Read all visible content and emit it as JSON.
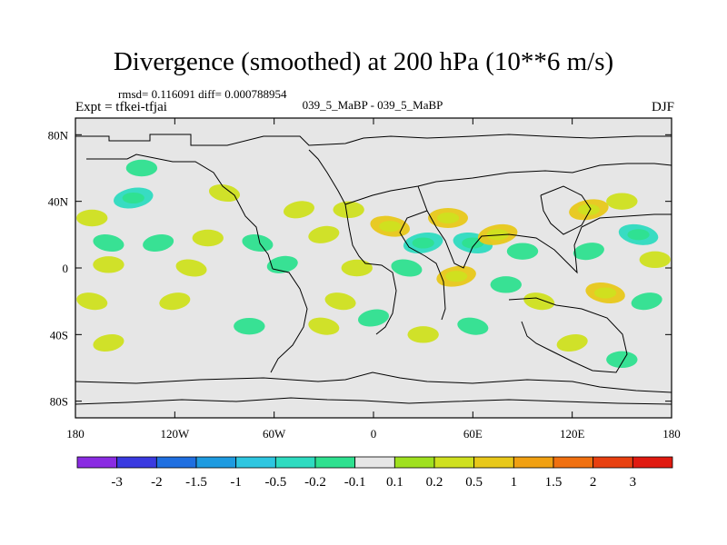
{
  "header": {
    "title": "Divergence (smoothed) at 200 hPa (10**6 m/s)",
    "stats": "rmsd= 0.116091 diff= 0.000788954",
    "experiment": "Expt = tfkei-tfjai",
    "runs": "039_5_MaBP - 039_5_MaBP",
    "season": "DJF"
  },
  "chart_data": {
    "type": "heatmap",
    "title": "Divergence (smoothed) at 200 hPa (10**6 m/s)",
    "xlabel": "",
    "ylabel": "",
    "xlim": [
      -180,
      180
    ],
    "ylim": [
      -90,
      90
    ],
    "x_ticks": [
      -180,
      -120,
      -60,
      0,
      60,
      120,
      180
    ],
    "x_tick_labels": [
      "180",
      "120W",
      "60W",
      "0",
      "60E",
      "120E",
      "180"
    ],
    "y_ticks": [
      80,
      40,
      0,
      -40,
      -80
    ],
    "y_tick_labels": [
      "80N",
      "40N",
      "0",
      "40S",
      "80S"
    ],
    "colorbar": {
      "levels": [
        "-3",
        "-2",
        "-1.5",
        "-1",
        "-0.5",
        "-0.2",
        "-0.1",
        "0.1",
        "0.2",
        "0.5",
        "1",
        "1.5",
        "2",
        "3"
      ],
      "colors": [
        "#8a2be2",
        "#3a3ae0",
        "#1f6fe0",
        "#1e9be0",
        "#2ec6e0",
        "#2edbc0",
        "#2ee08f",
        "#e6e6e6",
        "#9fe01f",
        "#cfe01f",
        "#e8c81a",
        "#f0a012",
        "#f07010",
        "#e84010",
        "#e01a10"
      ]
    },
    "anomalies": [
      {
        "lon": -145,
        "lat": 42,
        "value": -0.5
      },
      {
        "lon": -140,
        "lat": 60,
        "value": -0.2
      },
      {
        "lon": -90,
        "lat": 45,
        "value": 0.2
      },
      {
        "lon": -45,
        "lat": 35,
        "value": 0.2
      },
      {
        "lon": -170,
        "lat": 30,
        "value": 0.2
      },
      {
        "lon": -160,
        "lat": 15,
        "value": -0.2
      },
      {
        "lon": -130,
        "lat": 15,
        "value": -0.2
      },
      {
        "lon": -100,
        "lat": 18,
        "value": 0.2
      },
      {
        "lon": -70,
        "lat": 15,
        "value": -0.2
      },
      {
        "lon": -30,
        "lat": 20,
        "value": 0.2
      },
      {
        "lon": -160,
        "lat": 2,
        "value": 0.2
      },
      {
        "lon": -110,
        "lat": 0,
        "value": 0.2
      },
      {
        "lon": -55,
        "lat": 2,
        "value": -0.2
      },
      {
        "lon": -10,
        "lat": 0,
        "value": 0.2
      },
      {
        "lon": -170,
        "lat": -20,
        "value": 0.2
      },
      {
        "lon": -120,
        "lat": -20,
        "value": 0.2
      },
      {
        "lon": -75,
        "lat": -35,
        "value": -0.2
      },
      {
        "lon": -30,
        "lat": -35,
        "value": 0.2
      },
      {
        "lon": -160,
        "lat": -45,
        "value": 0.2
      },
      {
        "lon": -15,
        "lat": 35,
        "value": 0.2
      },
      {
        "lon": 10,
        "lat": 25,
        "value": 0.5
      },
      {
        "lon": 30,
        "lat": 15,
        "value": -0.5
      },
      {
        "lon": 45,
        "lat": 30,
        "value": 0.5
      },
      {
        "lon": 60,
        "lat": 15,
        "value": -0.5
      },
      {
        "lon": 75,
        "lat": 20,
        "value": 0.5
      },
      {
        "lon": 90,
        "lat": 10,
        "value": -0.2
      },
      {
        "lon": 20,
        "lat": 0,
        "value": -0.2
      },
      {
        "lon": 50,
        "lat": -5,
        "value": 0.5
      },
      {
        "lon": 80,
        "lat": -10,
        "value": -0.2
      },
      {
        "lon": 100,
        "lat": -20,
        "value": 0.2
      },
      {
        "lon": 130,
        "lat": 35,
        "value": 0.5
      },
      {
        "lon": 150,
        "lat": 40,
        "value": 0.2
      },
      {
        "lon": 160,
        "lat": 20,
        "value": -0.5
      },
      {
        "lon": 130,
        "lat": 10,
        "value": -0.2
      },
      {
        "lon": 170,
        "lat": 5,
        "value": 0.2
      },
      {
        "lon": 140,
        "lat": -15,
        "value": 0.5
      },
      {
        "lon": 165,
        "lat": -20,
        "value": -0.2
      },
      {
        "lon": 30,
        "lat": -40,
        "value": 0.2
      },
      {
        "lon": 60,
        "lat": -35,
        "value": -0.2
      },
      {
        "lon": 120,
        "lat": -45,
        "value": 0.2
      },
      {
        "lon": 150,
        "lat": -55,
        "value": -0.2
      },
      {
        "lon": -20,
        "lat": -20,
        "value": 0.2
      },
      {
        "lon": 0,
        "lat": -30,
        "value": -0.2
      }
    ]
  }
}
